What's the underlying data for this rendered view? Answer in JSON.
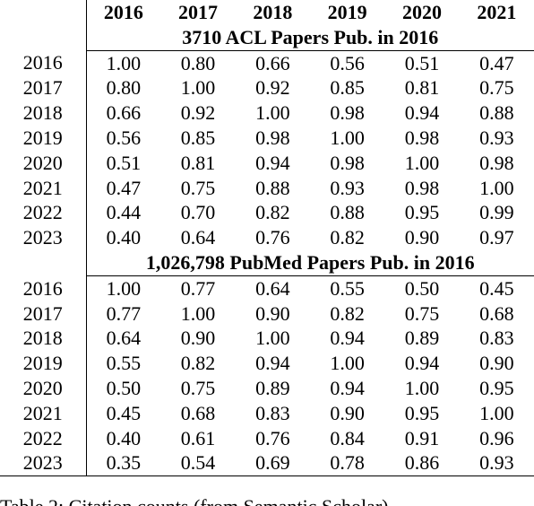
{
  "chart_data": {
    "type": "table",
    "columns": [
      "2016",
      "2017",
      "2018",
      "2019",
      "2020",
      "2021"
    ],
    "sections": [
      {
        "title": "3710 ACL Papers Pub. in 2016",
        "rows": [
          {
            "label": "2016",
            "values": [
              "1.00",
              "0.80",
              "0.66",
              "0.56",
              "0.51",
              "0.47"
            ]
          },
          {
            "label": "2017",
            "values": [
              "0.80",
              "1.00",
              "0.92",
              "0.85",
              "0.81",
              "0.75"
            ]
          },
          {
            "label": "2018",
            "values": [
              "0.66",
              "0.92",
              "1.00",
              "0.98",
              "0.94",
              "0.88"
            ]
          },
          {
            "label": "2019",
            "values": [
              "0.56",
              "0.85",
              "0.98",
              "1.00",
              "0.98",
              "0.93"
            ]
          },
          {
            "label": "2020",
            "values": [
              "0.51",
              "0.81",
              "0.94",
              "0.98",
              "1.00",
              "0.98"
            ]
          },
          {
            "label": "2021",
            "values": [
              "0.47",
              "0.75",
              "0.88",
              "0.93",
              "0.98",
              "1.00"
            ]
          },
          {
            "label": "2022",
            "values": [
              "0.44",
              "0.70",
              "0.82",
              "0.88",
              "0.95",
              "0.99"
            ]
          },
          {
            "label": "2023",
            "values": [
              "0.40",
              "0.64",
              "0.76",
              "0.82",
              "0.90",
              "0.97"
            ]
          }
        ]
      },
      {
        "title": "1,026,798 PubMed Papers Pub. in 2016",
        "rows": [
          {
            "label": "2016",
            "values": [
              "1.00",
              "0.77",
              "0.64",
              "0.55",
              "0.50",
              "0.45"
            ]
          },
          {
            "label": "2017",
            "values": [
              "0.77",
              "1.00",
              "0.90",
              "0.82",
              "0.75",
              "0.68"
            ]
          },
          {
            "label": "2018",
            "values": [
              "0.64",
              "0.90",
              "1.00",
              "0.94",
              "0.89",
              "0.83"
            ]
          },
          {
            "label": "2019",
            "values": [
              "0.55",
              "0.82",
              "0.94",
              "1.00",
              "0.94",
              "0.90"
            ]
          },
          {
            "label": "2020",
            "values": [
              "0.50",
              "0.75",
              "0.89",
              "0.94",
              "1.00",
              "0.95"
            ]
          },
          {
            "label": "2021",
            "values": [
              "0.45",
              "0.68",
              "0.83",
              "0.90",
              "0.95",
              "1.00"
            ]
          },
          {
            "label": "2022",
            "values": [
              "0.40",
              "0.61",
              "0.76",
              "0.84",
              "0.91",
              "0.96"
            ]
          },
          {
            "label": "2023",
            "values": [
              "0.35",
              "0.54",
              "0.69",
              "0.78",
              "0.86",
              "0.93"
            ]
          }
        ]
      }
    ]
  },
  "caption": "Table 2: Citation counts (from Semantic Scholar)"
}
